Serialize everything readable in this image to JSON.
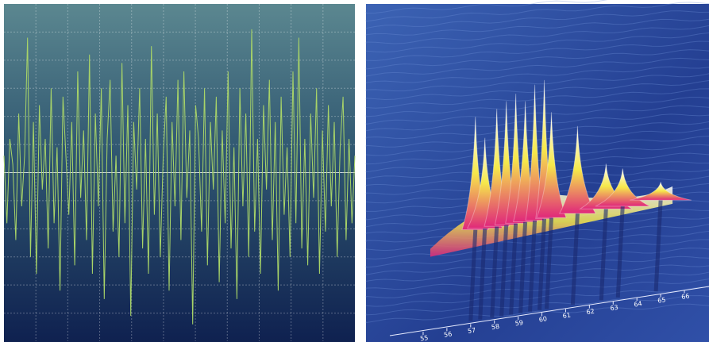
{
  "chart_data": [
    {
      "type": "line",
      "color": "#a8d468",
      "ylim": [
        -1,
        1
      ],
      "grid": true,
      "values": [
        0.1,
        -0.3,
        0.2,
        0.05,
        -0.4,
        0.35,
        -0.2,
        0.1,
        0.8,
        -0.5,
        0.3,
        -0.6,
        0.4,
        -0.1,
        0.2,
        -0.45,
        0.5,
        -0.3,
        0.15,
        -0.7,
        0.45,
        0.1,
        -0.25,
        0.3,
        -0.55,
        0.6,
        -0.15,
        0.25,
        -0.4,
        0.7,
        -0.6,
        0.35,
        -0.2,
        0.5,
        -0.75,
        0.2,
        0.55,
        -0.35,
        0.1,
        -0.5,
        0.65,
        -0.3,
        0.4,
        -0.85,
        0.3,
        -0.1,
        0.5,
        -0.45,
        0.2,
        -0.6,
        0.75,
        -0.25,
        0.35,
        -0.5,
        0.1,
        0.45,
        -0.7,
        0.3,
        -0.2,
        0.55,
        -0.4,
        0.6,
        -0.15,
        0.25,
        -0.9,
        0.4,
        0.2,
        -0.35,
        0.5,
        -0.55,
        0.3,
        -0.1,
        0.45,
        -0.65,
        0.25,
        -0.3,
        0.6,
        -0.45,
        0.15,
        -0.75,
        0.5,
        -0.2,
        0.35,
        -0.5,
        0.85,
        -0.35,
        0.2,
        -0.6,
        0.4,
        -0.1,
        0.55,
        -0.4,
        0.3,
        -0.7,
        0.45,
        -0.25,
        0.15,
        -0.5,
        0.6,
        -0.3,
        0.8,
        -0.45,
        0.2,
        -0.55,
        0.35,
        -0.15,
        0.5,
        -0.6,
        0.25,
        -0.35,
        0.4,
        -0.2,
        0.3,
        -0.5,
        0.15,
        0.45,
        -0.4,
        0.2,
        -0.3,
        0.1
      ]
    },
    {
      "type": "surface",
      "colors": [
        "#ffffff",
        "#f6e84a",
        "#e0287a"
      ],
      "x": [
        57.2,
        57.6,
        58.1,
        58.5,
        58.9,
        59.3,
        59.7,
        60.1,
        60.4,
        61.5,
        62.7,
        63.4,
        65.0
      ],
      "values": [
        75,
        60,
        78,
        82,
        86,
        80,
        90,
        92,
        70,
        58,
        30,
        25,
        12
      ],
      "xlim": [
        54.6,
        66.3
      ],
      "xticks": [
        55,
        56,
        57,
        58,
        59,
        60,
        61,
        62,
        63,
        64,
        65,
        66
      ]
    }
  ]
}
